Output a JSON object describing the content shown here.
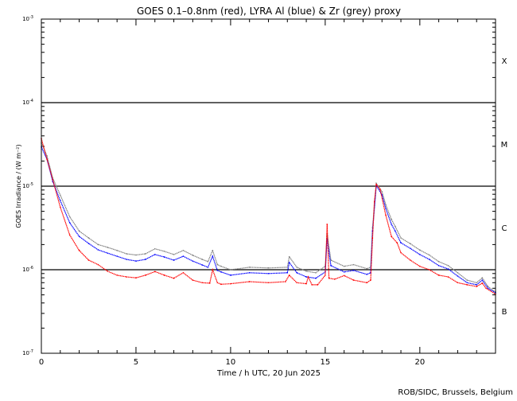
{
  "chart_data": {
    "type": "scatter",
    "title": "GOES 0.1–0.8nm (red), LYRA Al (blue) & Zr (grey) proxy",
    "xlabel": "Time / h UTC, 20 Jun 2025",
    "ylabel": "GOES Irradiance / (W m⁻²)",
    "xlim": [
      0,
      24
    ],
    "ylim": [
      1e-07,
      0.001
    ],
    "yscale": "log",
    "x_ticks": [
      "0",
      "5",
      "10",
      "15",
      "20"
    ],
    "x_tick_values": [
      0,
      5,
      10,
      15,
      20
    ],
    "y_ticks": [
      {
        "base": "10",
        "exp": "-3",
        "value": 0.001
      },
      {
        "base": "10",
        "exp": "-4",
        "value": 0.0001
      },
      {
        "base": "10",
        "exp": "-5",
        "value": 1e-05
      },
      {
        "base": "10",
        "exp": "-6",
        "value": 1e-06
      },
      {
        "base": "10",
        "exp": "-7",
        "value": 1e-07
      }
    ],
    "flare_class_lines": [
      0.0001,
      1e-05,
      1e-06
    ],
    "flare_classes": [
      {
        "label": "X",
        "value": 0.00032
      },
      {
        "label": "M",
        "value": 3.2e-05
      },
      {
        "label": "C",
        "value": 3.2e-06
      },
      {
        "label": "B",
        "value": 3.2e-07
      }
    ],
    "series": [
      {
        "name": "Zr proxy (grey)",
        "color": "#808080",
        "points": [
          [
            0,
            3.3e-05
          ],
          [
            0.3,
            2.3e-05
          ],
          [
            0.6,
            1.25e-05
          ],
          [
            1,
            7.8e-06
          ],
          [
            1.5,
            4.3e-06
          ],
          [
            2,
            2.9e-06
          ],
          [
            2.5,
            2.4e-06
          ],
          [
            3,
            2e-06
          ],
          [
            3.5,
            1.85e-06
          ],
          [
            4,
            1.7e-06
          ],
          [
            4.5,
            1.55e-06
          ],
          [
            5,
            1.5e-06
          ],
          [
            5.5,
            1.55e-06
          ],
          [
            6,
            1.78e-06
          ],
          [
            6.5,
            1.66e-06
          ],
          [
            7,
            1.52e-06
          ],
          [
            7.5,
            1.7e-06
          ],
          [
            8,
            1.49e-06
          ],
          [
            8.5,
            1.33e-06
          ],
          [
            8.8,
            1.25e-06
          ],
          [
            9.05,
            1.7e-06
          ],
          [
            9.3,
            1.15e-06
          ],
          [
            9.5,
            1.1e-06
          ],
          [
            10,
            1e-06
          ],
          [
            11,
            1.07e-06
          ],
          [
            12,
            1.05e-06
          ],
          [
            13,
            1.07e-06
          ],
          [
            13.1,
            1.43e-06
          ],
          [
            13.5,
            1.07e-06
          ],
          [
            14,
            9.6e-07
          ],
          [
            14.5,
            9.2e-07
          ],
          [
            15,
            1.1e-06
          ],
          [
            15.1,
            2.7e-06
          ],
          [
            15.3,
            1.3e-06
          ],
          [
            16,
            1.1e-06
          ],
          [
            16.5,
            1.15e-06
          ],
          [
            17.2,
            1.03e-06
          ],
          [
            17.4,
            1.07e-06
          ],
          [
            17.5,
            3.2e-06
          ],
          [
            17.7,
            1.08e-05
          ],
          [
            18,
            8.6e-06
          ],
          [
            18.2,
            6e-06
          ],
          [
            18.5,
            4e-06
          ],
          [
            18.7,
            3.3e-06
          ],
          [
            19,
            2.4e-06
          ],
          [
            19.5,
            2.05e-06
          ],
          [
            20,
            1.72e-06
          ],
          [
            20.5,
            1.5e-06
          ],
          [
            21,
            1.25e-06
          ],
          [
            21.5,
            1.12e-06
          ],
          [
            22,
            9.2e-07
          ],
          [
            22.5,
            7.5e-07
          ],
          [
            23,
            7e-07
          ],
          [
            23.3,
            8e-07
          ],
          [
            23.6,
            6.3e-07
          ],
          [
            24,
            5.4e-07
          ]
        ]
      },
      {
        "name": "LYRA Al proxy (blue)",
        "color": "#0000ff",
        "points": [
          [
            0,
            2.95e-05
          ],
          [
            0.3,
            2.1e-05
          ],
          [
            0.6,
            1.14e-05
          ],
          [
            1,
            6.7e-06
          ],
          [
            1.5,
            3.65e-06
          ],
          [
            2,
            2.5e-06
          ],
          [
            2.5,
            2.06e-06
          ],
          [
            3,
            1.73e-06
          ],
          [
            3.5,
            1.58e-06
          ],
          [
            4,
            1.45e-06
          ],
          [
            4.5,
            1.33e-06
          ],
          [
            5,
            1.27e-06
          ],
          [
            5.5,
            1.33e-06
          ],
          [
            6,
            1.52e-06
          ],
          [
            6.5,
            1.42e-06
          ],
          [
            7,
            1.3e-06
          ],
          [
            7.5,
            1.45e-06
          ],
          [
            8,
            1.27e-06
          ],
          [
            8.5,
            1.14e-06
          ],
          [
            8.8,
            1.07e-06
          ],
          [
            9.05,
            1.45e-06
          ],
          [
            9.3,
            9.8e-07
          ],
          [
            9.5,
            9.4e-07
          ],
          [
            10,
            8.6e-07
          ],
          [
            11,
            9.2e-07
          ],
          [
            12,
            9e-07
          ],
          [
            13,
            9.2e-07
          ],
          [
            13.1,
            1.22e-06
          ],
          [
            13.5,
            9.2e-07
          ],
          [
            14,
            8.2e-07
          ],
          [
            14.5,
            7.9e-07
          ],
          [
            15,
            9.4e-07
          ],
          [
            15.1,
            2.35e-06
          ],
          [
            15.3,
            1.12e-06
          ],
          [
            16,
            9.4e-07
          ],
          [
            16.5,
            9.8e-07
          ],
          [
            17.2,
            8.8e-07
          ],
          [
            17.4,
            9.2e-07
          ],
          [
            17.5,
            2.9e-06
          ],
          [
            17.7,
            1.02e-05
          ],
          [
            18,
            7.85e-06
          ],
          [
            18.2,
            5.4e-06
          ],
          [
            18.5,
            3.5e-06
          ],
          [
            18.7,
            2.9e-06
          ],
          [
            19,
            2.1e-06
          ],
          [
            19.5,
            1.8e-06
          ],
          [
            20,
            1.52e-06
          ],
          [
            20.5,
            1.33e-06
          ],
          [
            21,
            1.12e-06
          ],
          [
            21.5,
            1.02e-06
          ],
          [
            22,
            8.4e-07
          ],
          [
            22.5,
            7e-07
          ],
          [
            23,
            6.6e-07
          ],
          [
            23.3,
            7.5e-07
          ],
          [
            23.6,
            6e-07
          ],
          [
            24,
            5.3e-07
          ]
        ]
      },
      {
        "name": "GOES 0.1-0.8nm (red)",
        "color": "#ff0000",
        "points": [
          [
            0,
            3.7e-05
          ],
          [
            0.3,
            2.1e-05
          ],
          [
            0.6,
            1.2e-05
          ],
          [
            1,
            5.6e-06
          ],
          [
            1.5,
            2.6e-06
          ],
          [
            2,
            1.7e-06
          ],
          [
            2.5,
            1.3e-06
          ],
          [
            3,
            1.15e-06
          ],
          [
            3.5,
            9.6e-07
          ],
          [
            4,
            8.6e-07
          ],
          [
            4.5,
            8.2e-07
          ],
          [
            5,
            8e-07
          ],
          [
            5.5,
            8.6e-07
          ],
          [
            6,
            9.5e-07
          ],
          [
            6.5,
            8.6e-07
          ],
          [
            7,
            7.9e-07
          ],
          [
            7.5,
            9.2e-07
          ],
          [
            8,
            7.5e-07
          ],
          [
            8.5,
            7e-07
          ],
          [
            8.9,
            6.9e-07
          ],
          [
            9.05,
            1e-06
          ],
          [
            9.3,
            7e-07
          ],
          [
            9.5,
            6.7e-07
          ],
          [
            10,
            6.8e-07
          ],
          [
            11,
            7.2e-07
          ],
          [
            12,
            7e-07
          ],
          [
            12.9,
            7.2e-07
          ],
          [
            13.1,
            8.6e-07
          ],
          [
            13.5,
            7e-07
          ],
          [
            14,
            6.8e-07
          ],
          [
            14.1,
            8.2e-07
          ],
          [
            14.3,
            6.6e-07
          ],
          [
            14.6,
            6.6e-07
          ],
          [
            15,
            8.6e-07
          ],
          [
            15.1,
            3.5e-06
          ],
          [
            15.2,
            7.9e-07
          ],
          [
            15.5,
            7.7e-07
          ],
          [
            16,
            8.5e-07
          ],
          [
            16.5,
            7.5e-07
          ],
          [
            17.2,
            7e-07
          ],
          [
            17.4,
            7.5e-07
          ],
          [
            17.5,
            2.4e-06
          ],
          [
            17.6,
            6.5e-06
          ],
          [
            17.7,
            1.05e-05
          ],
          [
            17.9,
            9.2e-06
          ],
          [
            18.2,
            4.5e-06
          ],
          [
            18.5,
            2.5e-06
          ],
          [
            18.8,
            2.1e-06
          ],
          [
            19,
            1.6e-06
          ],
          [
            19.5,
            1.3e-06
          ],
          [
            20,
            1.1e-06
          ],
          [
            20.5,
            1e-06
          ],
          [
            21,
            8.6e-07
          ],
          [
            21.5,
            8.2e-07
          ],
          [
            22,
            7e-07
          ],
          [
            22.5,
            6.6e-07
          ],
          [
            23,
            6.3e-07
          ],
          [
            23.3,
            6.9e-07
          ],
          [
            23.5,
            6e-07
          ],
          [
            24,
            5.1e-07
          ]
        ]
      }
    ],
    "grid": false
  },
  "credit": "ROB/SIDC, Brussels, Belgium"
}
